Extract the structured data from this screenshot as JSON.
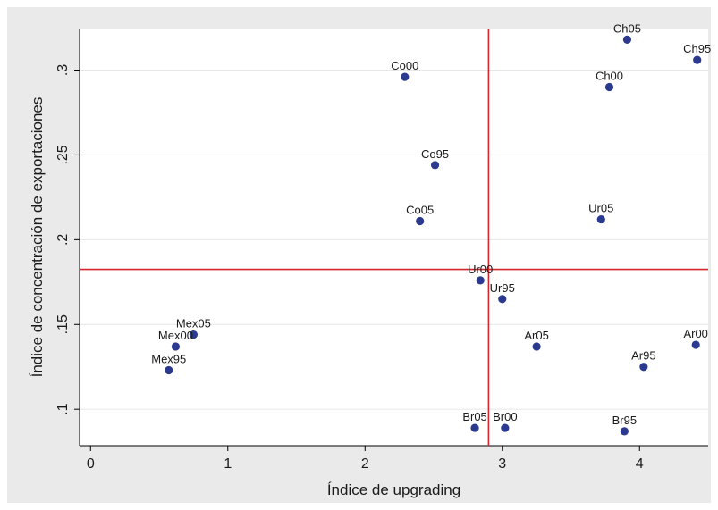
{
  "chart_data": {
    "type": "scatter",
    "title": "",
    "xlabel": "Índice de upgrading",
    "ylabel": "Índice de concentración de exportaciones",
    "xlim": [
      -0.08,
      4.5
    ],
    "ylim": [
      0.0785,
      0.3245
    ],
    "xticks": [
      0,
      1,
      2,
      3,
      4
    ],
    "yticks": [
      0.1,
      0.15,
      0.2,
      0.25,
      0.3
    ],
    "xtick_labels": [
      "0",
      "1",
      "2",
      "3",
      "4"
    ],
    "ytick_labels": [
      ".1",
      ".15",
      ".2",
      ".25",
      ".3"
    ],
    "grid": "horizontal",
    "point_color": "#2b3a8f",
    "line_color": "#d6262c",
    "reference_lines": {
      "x": 2.9,
      "y": 0.1825
    },
    "points": [
      {
        "label": "Ch05",
        "x": 3.91,
        "y": 0.318
      },
      {
        "label": "Ch95",
        "x": 4.42,
        "y": 0.306
      },
      {
        "label": "Co00",
        "x": 2.29,
        "y": 0.296
      },
      {
        "label": "Ch00",
        "x": 3.78,
        "y": 0.29
      },
      {
        "label": "Co95",
        "x": 2.51,
        "y": 0.244
      },
      {
        "label": "Co05",
        "x": 2.4,
        "y": 0.211
      },
      {
        "label": "Ur05",
        "x": 3.72,
        "y": 0.212
      },
      {
        "label": "Ur00",
        "x": 2.84,
        "y": 0.176
      },
      {
        "label": "Ur95",
        "x": 3.0,
        "y": 0.165
      },
      {
        "label": "Mex05",
        "x": 0.75,
        "y": 0.144
      },
      {
        "label": "Mex00",
        "x": 0.62,
        "y": 0.137
      },
      {
        "label": "Mex95",
        "x": 0.57,
        "y": 0.123
      },
      {
        "label": "Ar05",
        "x": 3.25,
        "y": 0.137
      },
      {
        "label": "Ar00",
        "x": 4.41,
        "y": 0.138
      },
      {
        "label": "Ar95",
        "x": 4.03,
        "y": 0.125
      },
      {
        "label": "Br05",
        "x": 2.8,
        "y": 0.089
      },
      {
        "label": "Br00",
        "x": 3.02,
        "y": 0.089
      },
      {
        "label": "Br95",
        "x": 3.89,
        "y": 0.087
      }
    ]
  }
}
